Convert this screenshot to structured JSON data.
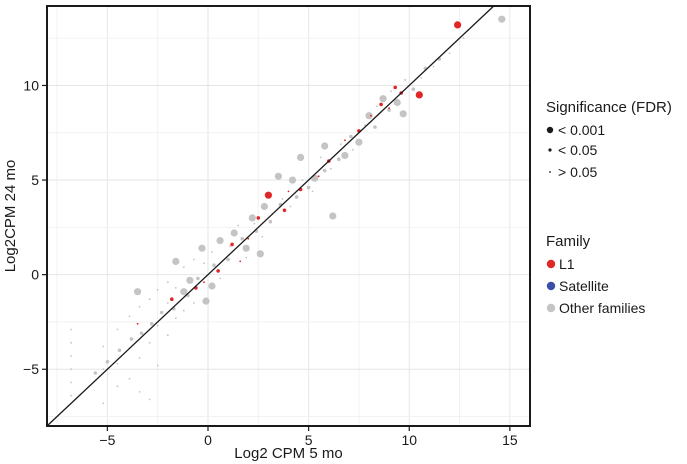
{
  "chart_data": {
    "type": "scatter",
    "title": "",
    "xlabel": "Log2 CPM 5 mo",
    "ylabel": "Log2CPM 24 mo",
    "xlim": [
      -8,
      16
    ],
    "ylim": [
      -8,
      14.2
    ],
    "xticks": [
      -5,
      0,
      5,
      10,
      15
    ],
    "yticks": [
      -5,
      0,
      5,
      10
    ],
    "grid": true,
    "reference_line": "y = x",
    "colors": {
      "L1": "#e02626",
      "Satellite": "#3a4fa8",
      "Other families": "#c4c4c4",
      "line": "#1a1a1a"
    },
    "legend_significance": {
      "title": "Significance (FDR)",
      "entries": [
        "< 0.001",
        "< 0.05",
        "> 0.05"
      ]
    },
    "legend_family": {
      "title": "Family",
      "entries": [
        "L1",
        "Satellite",
        "Other families"
      ]
    },
    "series": [
      {
        "name": "L1",
        "points": [
          {
            "x": 12.4,
            "y": 13.2,
            "sig": "< 0.001"
          },
          {
            "x": 10.5,
            "y": 9.5,
            "sig": "< 0.001"
          },
          {
            "x": 3.0,
            "y": 4.2,
            "sig": "< 0.001"
          },
          {
            "x": 9.3,
            "y": 9.9,
            "sig": "< 0.05"
          },
          {
            "x": 9.6,
            "y": 9.6,
            "sig": "< 0.05"
          },
          {
            "x": 8.6,
            "y": 9.0,
            "sig": "< 0.05"
          },
          {
            "x": 7.5,
            "y": 7.6,
            "sig": "< 0.05"
          },
          {
            "x": 6.0,
            "y": 6.0,
            "sig": "< 0.05"
          },
          {
            "x": 4.6,
            "y": 4.5,
            "sig": "< 0.05"
          },
          {
            "x": 3.8,
            "y": 3.4,
            "sig": "< 0.05"
          },
          {
            "x": 2.5,
            "y": 3.0,
            "sig": "< 0.05"
          },
          {
            "x": 1.2,
            "y": 1.6,
            "sig": "< 0.05"
          },
          {
            "x": 0.5,
            "y": 0.2,
            "sig": "< 0.05"
          },
          {
            "x": -0.6,
            "y": -0.7,
            "sig": "< 0.05"
          },
          {
            "x": -1.8,
            "y": -1.3,
            "sig": "< 0.05"
          },
          {
            "x": -3.5,
            "y": -2.6,
            "sig": "> 0.05"
          },
          {
            "x": 2.0,
            "y": 1.9,
            "sig": "> 0.05"
          },
          {
            "x": 5.5,
            "y": 5.2,
            "sig": "> 0.05"
          },
          {
            "x": 6.8,
            "y": 7.1,
            "sig": "> 0.05"
          },
          {
            "x": 8.1,
            "y": 8.4,
            "sig": "> 0.05"
          },
          {
            "x": 4.0,
            "y": 4.4,
            "sig": "> 0.05"
          },
          {
            "x": 1.6,
            "y": 0.7,
            "sig": "> 0.05"
          },
          {
            "x": 9.0,
            "y": 8.8,
            "sig": "> 0.05"
          },
          {
            "x": -0.2,
            "y": -0.4,
            "sig": "> 0.05"
          }
        ]
      },
      {
        "name": "Satellite",
        "points": []
      },
      {
        "name": "Other families",
        "points": [
          {
            "x": 14.6,
            "y": 13.5,
            "sig": "< 0.001"
          },
          {
            "x": 9.7,
            "y": 8.5,
            "sig": "< 0.001"
          },
          {
            "x": 8.7,
            "y": 9.3,
            "sig": "< 0.001"
          },
          {
            "x": 8.0,
            "y": 8.4,
            "sig": "< 0.001"
          },
          {
            "x": 6.2,
            "y": 3.1,
            "sig": "< 0.001"
          },
          {
            "x": 5.8,
            "y": 6.8,
            "sig": "< 0.001"
          },
          {
            "x": 4.6,
            "y": 6.2,
            "sig": "< 0.001"
          },
          {
            "x": 3.5,
            "y": 5.2,
            "sig": "< 0.001"
          },
          {
            "x": 4.2,
            "y": 5.0,
            "sig": "< 0.001"
          },
          {
            "x": 2.8,
            "y": 3.6,
            "sig": "< 0.001"
          },
          {
            "x": 2.2,
            "y": 3.0,
            "sig": "< 0.001"
          },
          {
            "x": 1.3,
            "y": 2.2,
            "sig": "< 0.001"
          },
          {
            "x": 0.6,
            "y": 1.8,
            "sig": "< 0.001"
          },
          {
            "x": 1.9,
            "y": 1.4,
            "sig": "< 0.001"
          },
          {
            "x": -0.3,
            "y": 1.4,
            "sig": "< 0.001"
          },
          {
            "x": -1.6,
            "y": 0.7,
            "sig": "< 0.001"
          },
          {
            "x": 0.2,
            "y": -0.6,
            "sig": "< 0.001"
          },
          {
            "x": -0.9,
            "y": -0.3,
            "sig": "< 0.001"
          },
          {
            "x": -1.2,
            "y": -0.9,
            "sig": "< 0.001"
          },
          {
            "x": -0.1,
            "y": -1.4,
            "sig": "< 0.001"
          },
          {
            "x": -3.5,
            "y": -0.9,
            "sig": "< 0.001"
          },
          {
            "x": 2.6,
            "y": 1.1,
            "sig": "< 0.001"
          },
          {
            "x": 5.3,
            "y": 5.1,
            "sig": "< 0.001"
          },
          {
            "x": 6.8,
            "y": 6.3,
            "sig": "< 0.001"
          },
          {
            "x": 7.5,
            "y": 7.0,
            "sig": "< 0.001"
          },
          {
            "x": 9.4,
            "y": 9.1,
            "sig": "< 0.001"
          },
          {
            "x": 10.2,
            "y": 9.8,
            "sig": "< 0.05"
          },
          {
            "x": 11.5,
            "y": 11.4,
            "sig": "< 0.05"
          },
          {
            "x": 10.8,
            "y": 10.9,
            "sig": "< 0.05"
          },
          {
            "x": 9.0,
            "y": 8.7,
            "sig": "< 0.05"
          },
          {
            "x": 8.3,
            "y": 7.8,
            "sig": "< 0.05"
          },
          {
            "x": 7.1,
            "y": 7.3,
            "sig": "< 0.05"
          },
          {
            "x": 6.5,
            "y": 6.1,
            "sig": "< 0.05"
          },
          {
            "x": 5.8,
            "y": 5.5,
            "sig": "< 0.05"
          },
          {
            "x": 5.0,
            "y": 4.6,
            "sig": "< 0.05"
          },
          {
            "x": 4.4,
            "y": 4.1,
            "sig": "< 0.05"
          },
          {
            "x": 3.6,
            "y": 3.7,
            "sig": "< 0.05"
          },
          {
            "x": 3.1,
            "y": 2.8,
            "sig": "< 0.05"
          },
          {
            "x": 2.4,
            "y": 2.3,
            "sig": "< 0.05"
          },
          {
            "x": 1.7,
            "y": 1.9,
            "sig": "< 0.05"
          },
          {
            "x": 1.0,
            "y": 0.8,
            "sig": "< 0.05"
          },
          {
            "x": 0.3,
            "y": 0.5,
            "sig": "< 0.05"
          },
          {
            "x": -0.5,
            "y": -0.2,
            "sig": "< 0.05"
          },
          {
            "x": -1.0,
            "y": -1.1,
            "sig": "< 0.05"
          },
          {
            "x": -1.7,
            "y": -1.8,
            "sig": "< 0.05"
          },
          {
            "x": -2.3,
            "y": -2.0,
            "sig": "< 0.05"
          },
          {
            "x": -2.8,
            "y": -2.6,
            "sig": "< 0.05"
          },
          {
            "x": -3.3,
            "y": -3.1,
            "sig": "< 0.05"
          },
          {
            "x": -3.8,
            "y": -3.4,
            "sig": "< 0.05"
          },
          {
            "x": -4.4,
            "y": -4.0,
            "sig": "< 0.05"
          },
          {
            "x": -5.0,
            "y": -4.6,
            "sig": "< 0.05"
          },
          {
            "x": -5.6,
            "y": -5.2,
            "sig": "< 0.05"
          },
          {
            "x": -6.8,
            "y": -2.9,
            "sig": "> 0.05"
          },
          {
            "x": -6.8,
            "y": -3.6,
            "sig": "> 0.05"
          },
          {
            "x": -6.8,
            "y": -4.3,
            "sig": "> 0.05"
          },
          {
            "x": -6.8,
            "y": -5.0,
            "sig": "> 0.05"
          },
          {
            "x": -6.8,
            "y": -5.7,
            "sig": "> 0.05"
          },
          {
            "x": -6.8,
            "y": -6.4,
            "sig": "> 0.05"
          },
          {
            "x": -5.2,
            "y": -3.8,
            "sig": "> 0.05"
          },
          {
            "x": -5.2,
            "y": -5.0,
            "sig": "> 0.05"
          },
          {
            "x": -5.2,
            "y": -6.8,
            "sig": "> 0.05"
          },
          {
            "x": -4.5,
            "y": -2.9,
            "sig": "> 0.05"
          },
          {
            "x": -4.5,
            "y": -4.7,
            "sig": "> 0.05"
          },
          {
            "x": -4.5,
            "y": -5.9,
            "sig": "> 0.05"
          },
          {
            "x": -3.9,
            "y": -2.2,
            "sig": "> 0.05"
          },
          {
            "x": -3.9,
            "y": -3.9,
            "sig": "> 0.05"
          },
          {
            "x": -3.9,
            "y": -5.5,
            "sig": "> 0.05"
          },
          {
            "x": -3.4,
            "y": -1.7,
            "sig": "> 0.05"
          },
          {
            "x": -3.4,
            "y": -4.4,
            "sig": "> 0.05"
          },
          {
            "x": -3.4,
            "y": -6.2,
            "sig": "> 0.05"
          },
          {
            "x": -2.9,
            "y": -1.3,
            "sig": "> 0.05"
          },
          {
            "x": -2.9,
            "y": -3.6,
            "sig": "> 0.05"
          },
          {
            "x": -2.9,
            "y": -6.6,
            "sig": "> 0.05"
          },
          {
            "x": -2.5,
            "y": -0.8,
            "sig": "> 0.05"
          },
          {
            "x": -2.5,
            "y": -2.7,
            "sig": "> 0.05"
          },
          {
            "x": -2.5,
            "y": -4.8,
            "sig": "> 0.05"
          },
          {
            "x": -2.0,
            "y": -0.4,
            "sig": "> 0.05"
          },
          {
            "x": -2.0,
            "y": -1.5,
            "sig": "> 0.05"
          },
          {
            "x": -2.0,
            "y": -3.2,
            "sig": "> 0.05"
          },
          {
            "x": -1.6,
            "y": -0.7,
            "sig": "> 0.05"
          },
          {
            "x": -1.6,
            "y": -2.3,
            "sig": "> 0.05"
          },
          {
            "x": -1.2,
            "y": 0.4,
            "sig": "> 0.05"
          },
          {
            "x": -1.2,
            "y": -1.9,
            "sig": "> 0.05"
          },
          {
            "x": -0.7,
            "y": 0.8,
            "sig": "> 0.05"
          },
          {
            "x": -0.7,
            "y": -1.5,
            "sig": "> 0.05"
          },
          {
            "x": -0.2,
            "y": 0.6,
            "sig": "> 0.05"
          },
          {
            "x": 0.2,
            "y": 1.2,
            "sig": "> 0.05"
          },
          {
            "x": 0.6,
            "y": -0.2,
            "sig": "> 0.05"
          },
          {
            "x": 1.1,
            "y": 1.5,
            "sig": "> 0.05"
          },
          {
            "x": 1.5,
            "y": 2.6,
            "sig": "> 0.05"
          },
          {
            "x": 1.9,
            "y": 0.9,
            "sig": "> 0.05"
          },
          {
            "x": 2.3,
            "y": 2.7,
            "sig": "> 0.05"
          },
          {
            "x": 2.7,
            "y": 2.0,
            "sig": "> 0.05"
          },
          {
            "x": 3.2,
            "y": 3.2,
            "sig": "> 0.05"
          },
          {
            "x": 3.7,
            "y": 4.0,
            "sig": "> 0.05"
          },
          {
            "x": 4.1,
            "y": 3.6,
            "sig": "> 0.05"
          },
          {
            "x": 4.7,
            "y": 5.0,
            "sig": "> 0.05"
          },
          {
            "x": 5.2,
            "y": 4.4,
            "sig": "> 0.05"
          },
          {
            "x": 5.6,
            "y": 6.2,
            "sig": "> 0.05"
          },
          {
            "x": 6.1,
            "y": 5.6,
            "sig": "> 0.05"
          },
          {
            "x": 6.6,
            "y": 6.9,
            "sig": "> 0.05"
          },
          {
            "x": 7.2,
            "y": 6.6,
            "sig": "> 0.05"
          },
          {
            "x": 7.8,
            "y": 7.9,
            "sig": "> 0.05"
          },
          {
            "x": 8.4,
            "y": 8.9,
            "sig": "> 0.05"
          },
          {
            "x": 9.1,
            "y": 9.7,
            "sig": "> 0.05"
          },
          {
            "x": 9.8,
            "y": 10.3,
            "sig": "> 0.05"
          },
          {
            "x": 10.6,
            "y": 10.4,
            "sig": "> 0.05"
          },
          {
            "x": 11.2,
            "y": 11.0,
            "sig": "> 0.05"
          },
          {
            "x": 12.0,
            "y": 11.7,
            "sig": "> 0.05"
          },
          {
            "x": 12.7,
            "y": 12.5,
            "sig": "> 0.05"
          }
        ]
      }
    ]
  }
}
